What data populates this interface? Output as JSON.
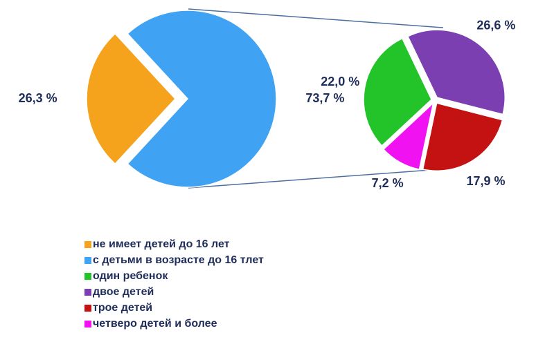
{
  "chart_data": [
    {
      "type": "pie",
      "categories": [
        "не имеет детей до 16 лет",
        "с детьми в возрасте до 16 тлет"
      ],
      "values": [
        26.3,
        73.7
      ],
      "value_labels": [
        "26,3 %",
        "73,7 %"
      ],
      "colors": [
        "#f5a21c",
        "#3fa2f2"
      ]
    },
    {
      "type": "pie",
      "categories": [
        "один ребенок",
        "двое детей",
        "трое детей",
        "четверо детей и более"
      ],
      "values": [
        22.0,
        26.6,
        17.9,
        7.2
      ],
      "value_labels": [
        "22,0 %",
        "26,6 %",
        "17,9 %",
        "7,2 %"
      ],
      "colors": [
        "#22c42a",
        "#7c3fb2",
        "#c41212",
        "#f012f0"
      ]
    }
  ]
}
